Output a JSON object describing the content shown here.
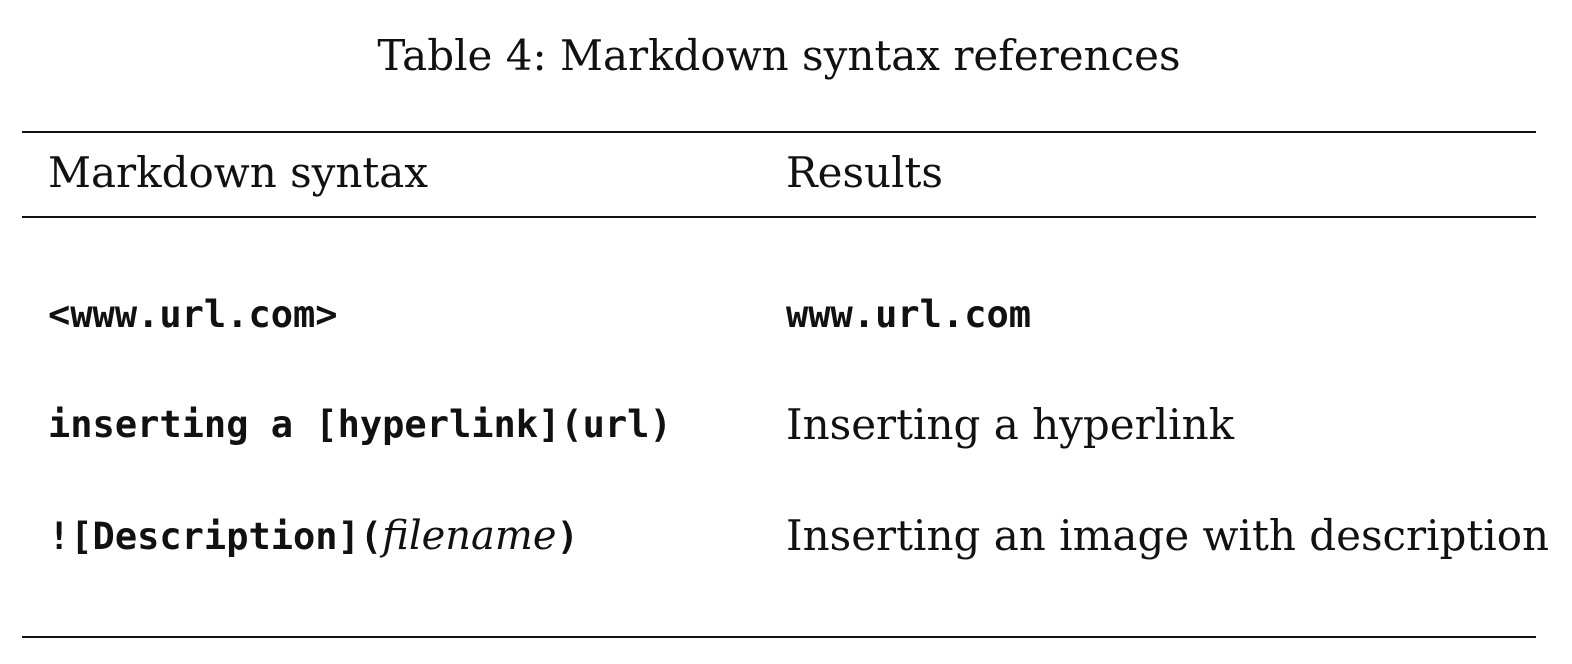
{
  "table": {
    "caption": "Table 4: Markdown syntax references",
    "headers": [
      "Markdown syntax",
      "Results"
    ],
    "rows": [
      {
        "syntax": {
          "text": "<www.url.com>"
        },
        "result": {
          "text": "www.url.com",
          "style": "monospace"
        }
      },
      {
        "syntax": {
          "text": "inserting a [hyperlink](url)"
        },
        "result": {
          "text": "Inserting a hyperlink",
          "style": "serif"
        }
      },
      {
        "syntax": {
          "prefix": "![Description](",
          "italic": "filename",
          "suffix": ")"
        },
        "result": {
          "text": "Inserting an image with description",
          "style": "serif"
        }
      }
    ]
  }
}
